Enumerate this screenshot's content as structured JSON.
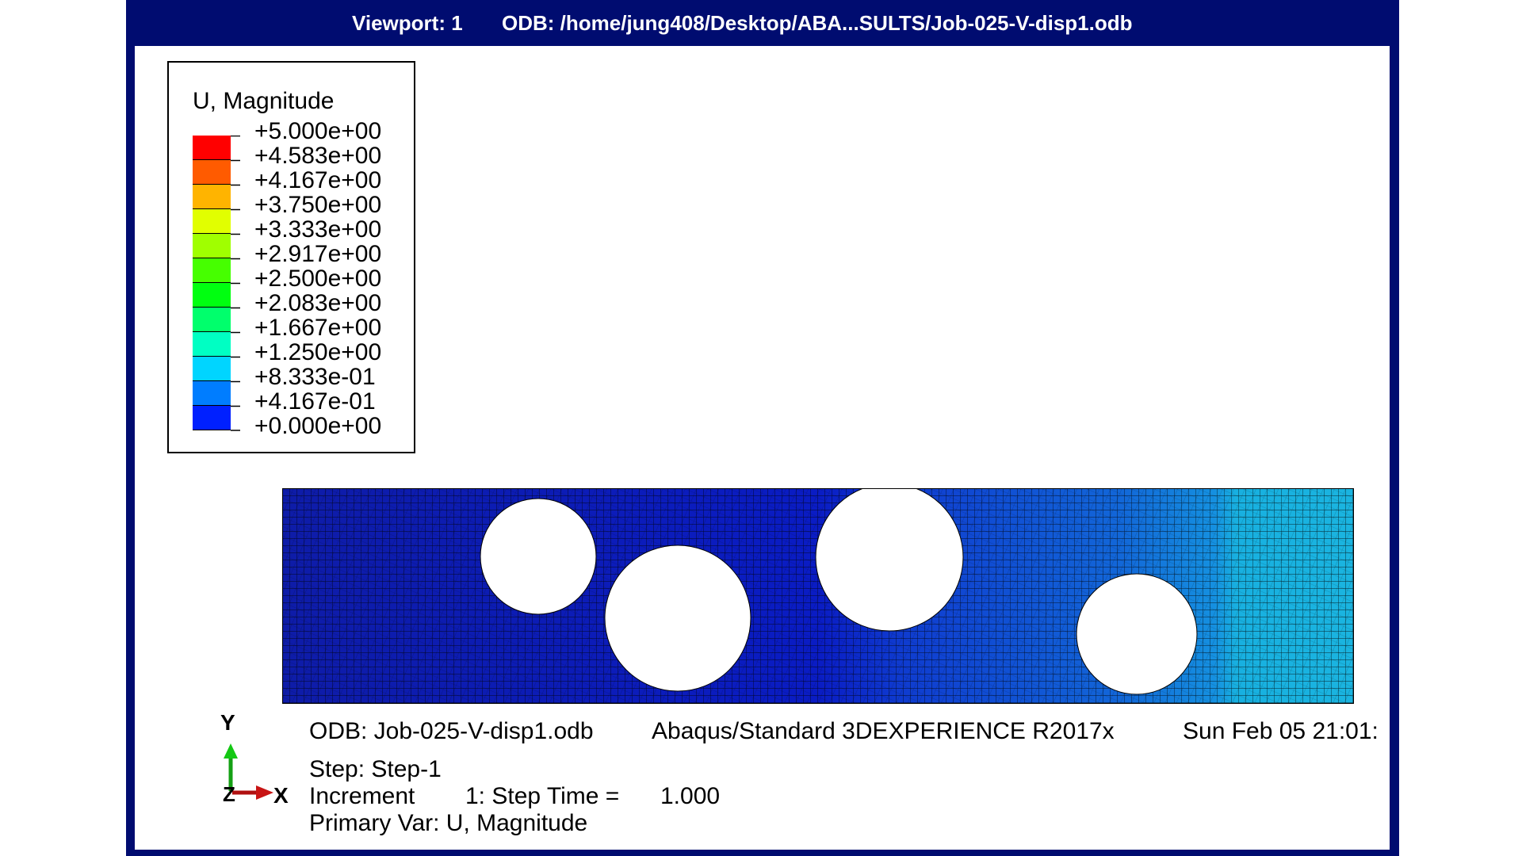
{
  "titlebar": {
    "viewport": "Viewport: 1",
    "odb_path": "ODB: /home/jung408/Desktop/ABA...SULTS/Job-025-V-disp1.odb"
  },
  "legend": {
    "title": "U, Magnitude",
    "labels": [
      "+5.000e+00",
      "+4.583e+00",
      "+4.167e+00",
      "+3.750e+00",
      "+3.333e+00",
      "+2.917e+00",
      "+2.500e+00",
      "+2.083e+00",
      "+1.667e+00",
      "+1.250e+00",
      "+8.333e-01",
      "+4.167e-01",
      "+0.000e+00"
    ],
    "colors": [
      "#ff0000",
      "#ff5b00",
      "#ffb400",
      "#e1ff00",
      "#a0ff00",
      "#46ff00",
      "#00ff10",
      "#00ff6c",
      "#00ffc3",
      "#00d5ff",
      "#007dff",
      "#0020ff",
      "#0000e8"
    ]
  },
  "info": {
    "odb": "ODB: Job-025-V-disp1.odb",
    "solver": "Abaqus/Standard 3DEXPERIENCE R2017x",
    "date": "Sun Feb 05 21:01:",
    "step": "Step: Step-1",
    "increment_label": "Increment",
    "increment_value": "1: Step Time =",
    "step_time": "1.000",
    "primary_var": "Primary Var: U, Magnitude"
  },
  "triad": {
    "y": "Y",
    "z": "Z",
    "x": "X"
  },
  "colors": {
    "frame": "#000c70",
    "mesh_dark": "#0a1fb8",
    "mesh_light": "#1aa8dc"
  }
}
